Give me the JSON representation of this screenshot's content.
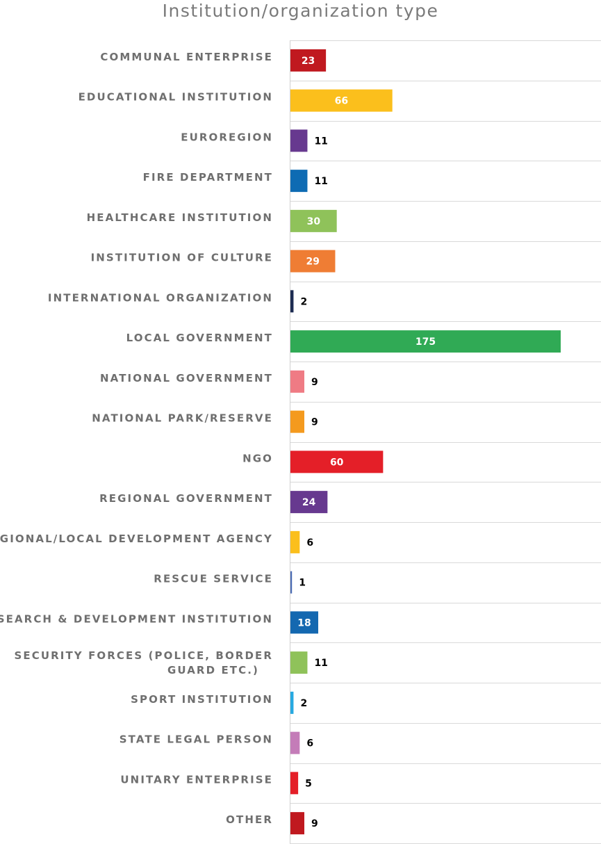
{
  "chart_data": {
    "type": "bar",
    "orientation": "horizontal",
    "title": "Institution/organization type",
    "xlabel": "",
    "ylabel": "",
    "xlim": [
      0,
      175
    ],
    "grid": "horizontal row separators",
    "legend": "none",
    "categories": [
      "COMMUNAL ENTERPRISE",
      "EDUCATIONAL INSTITUTION",
      "EUROREGION",
      "FIRE DEPARTMENT",
      "HEALTHCARE INSTITUTION",
      "INSTITUTION OF CULTURE",
      "INTERNATIONAL ORGANIZATION",
      "LOCAL GOVERNMENT",
      "NATIONAL GOVERNMENT",
      "NATIONAL PARK/RESERVE",
      "NGO",
      "REGIONAL GOVERNMENT",
      "REGIONAL/LOCAL DEVELOPMENT AGENCY",
      "RESCUE SERVICE",
      "RESEARCH & DEVELOPMENT INSTITUTION",
      "SECURITY FORCES (POLICE, BORDER GUARD ETC.)",
      "SPORT INSTITUTION",
      "STATE LEGAL PERSON",
      "UNITARY ENTERPRISE",
      "OTHER"
    ],
    "values": [
      23,
      66,
      11,
      11,
      30,
      29,
      2,
      175,
      9,
      9,
      60,
      24,
      6,
      1,
      18,
      11,
      2,
      6,
      5,
      9
    ],
    "colors": [
      "#c0191f",
      "#fbbf1c",
      "#67398f",
      "#0e6bb3",
      "#8fc25a",
      "#ef7d34",
      "#1d2c52",
      "#30aa55",
      "#ef7b84",
      "#f49a1e",
      "#e41f28",
      "#67398f",
      "#fbbf1c",
      "#4a6bb4",
      "#1468b0",
      "#8fc25a",
      "#27a9e1",
      "#c47cb8",
      "#e41f28",
      "#c0191f"
    ],
    "label_inside": [
      true,
      true,
      false,
      false,
      true,
      true,
      false,
      true,
      false,
      false,
      true,
      true,
      false,
      false,
      true,
      false,
      false,
      false,
      false,
      false
    ]
  }
}
